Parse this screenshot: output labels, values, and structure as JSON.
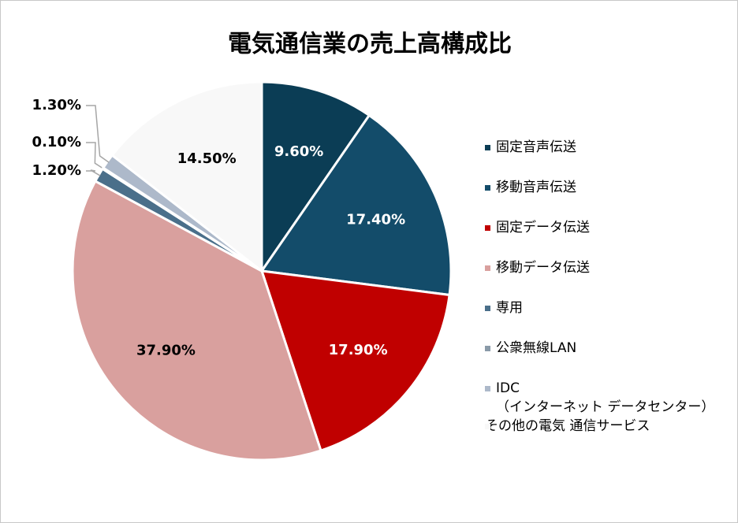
{
  "chart_data": {
    "type": "pie",
    "title": "電気通信業の売上高構成比",
    "categories": [
      "固定音声伝送",
      "移動音声伝送",
      "固定データ伝送",
      "移動データ伝送",
      "専用",
      "公衆無線LAN",
      "IDC\n（インターネット データセンター）",
      "その他の電気 通信サービス"
    ],
    "values": [
      9.6,
      17.4,
      17.9,
      37.9,
      1.2,
      0.1,
      1.3,
      14.5
    ],
    "value_labels": [
      "9.60%",
      "17.40%",
      "17.90%",
      "37.90%",
      "1.20%",
      "0.10%",
      "1.30%",
      "14.50%"
    ],
    "colors": [
      "#0b3d55",
      "#134c6a",
      "#c00000",
      "#d9a09e",
      "#4a6f8a",
      "#8a9aa8",
      "#adb9ca",
      "#f8f8f8"
    ],
    "legend": "right"
  }
}
